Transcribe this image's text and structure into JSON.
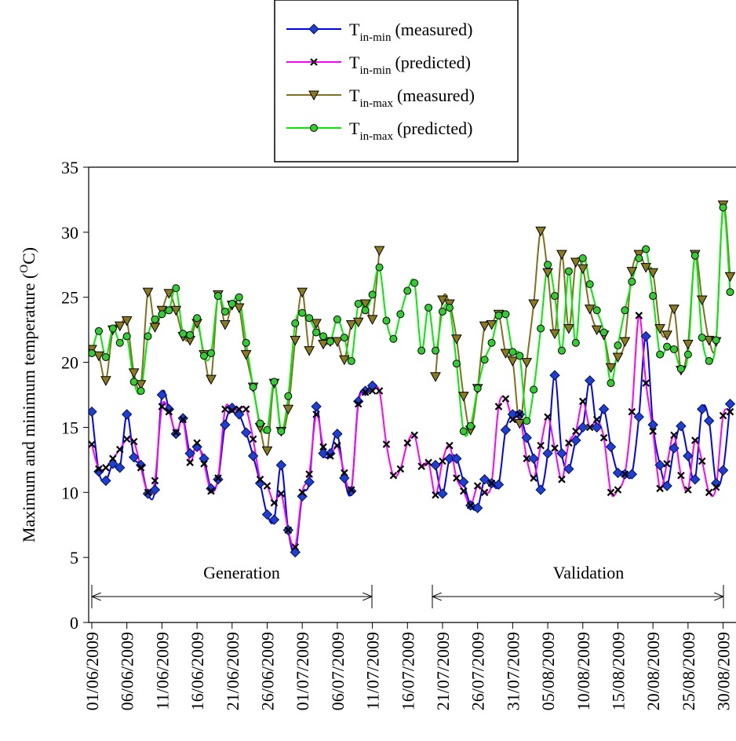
{
  "chart_data": {
    "type": "line",
    "ylabel": {
      "text": "Maximum and minimum temperature (",
      "sup": "O",
      "end": "C)"
    },
    "x": [
      "01/06/2009",
      "02/06/2009",
      "03/06/2009",
      "04/06/2009",
      "05/06/2009",
      "06/06/2009",
      "07/06/2009",
      "08/06/2009",
      "09/06/2009",
      "10/06/2009",
      "11/06/2009",
      "12/06/2009",
      "13/06/2009",
      "14/06/2009",
      "15/06/2009",
      "16/06/2009",
      "17/06/2009",
      "18/06/2009",
      "19/06/2009",
      "20/06/2009",
      "21/06/2009",
      "22/06/2009",
      "23/06/2009",
      "24/06/2009",
      "25/06/2009",
      "26/06/2009",
      "27/06/2009",
      "28/06/2009",
      "29/06/2009",
      "30/06/2009",
      "01/07/2009",
      "02/07/2009",
      "03/07/2009",
      "04/07/2009",
      "05/07/2009",
      "06/07/2009",
      "07/07/2009",
      "08/07/2009",
      "09/07/2009",
      "10/07/2009",
      "11/07/2009",
      "12/07/2009",
      "13/07/2009",
      "14/07/2009",
      "15/07/2009",
      "16/07/2009",
      "17/07/2009",
      "18/07/2009",
      "19/07/2009",
      "20/07/2009",
      "21/07/2009",
      "22/07/2009",
      "23/07/2009",
      "24/07/2009",
      "25/07/2009",
      "26/07/2009",
      "27/07/2009",
      "28/07/2009",
      "29/07/2009",
      "30/07/2009",
      "31/07/2009",
      "01/08/2009",
      "02/08/2009",
      "03/08/2009",
      "04/08/2009",
      "05/08/2009",
      "06/08/2009",
      "07/08/2009",
      "08/08/2009",
      "09/08/2009",
      "10/08/2009",
      "11/08/2009",
      "12/08/2009",
      "13/08/2009",
      "14/08/2009",
      "15/08/2009",
      "16/08/2009",
      "17/08/2009",
      "18/08/2009",
      "19/08/2009",
      "20/08/2009",
      "21/08/2009",
      "22/08/2009",
      "23/08/2009",
      "24/08/2009",
      "25/08/2009",
      "26/08/2009",
      "27/08/2009",
      "28/08/2009",
      "29/08/2009",
      "30/08/2009",
      "31/08/2009"
    ],
    "xlim": [
      "01/06/2009",
      "31/08/2009"
    ],
    "xticks": [
      "01/06/2009",
      "06/06/2009",
      "11/06/2009",
      "16/06/2009",
      "21/06/2009",
      "26/06/2009",
      "01/07/2009",
      "06/07/2009",
      "11/07/2009",
      "16/07/2009",
      "21/07/2009",
      "26/07/2009",
      "31/07/2009",
      "05/08/2009",
      "10/08/2009",
      "15/08/2009",
      "20/08/2009",
      "25/08/2009",
      "30/08/2009"
    ],
    "ylim": [
      0,
      35
    ],
    "yticks": [
      0,
      5,
      10,
      15,
      20,
      25,
      30,
      35
    ],
    "annotations": [
      "Generation",
      "Validation"
    ],
    "series": [
      {
        "name": {
          "base": "T",
          "sub": "in-min",
          "rest": "(measured)"
        },
        "color": "#0000ff",
        "marker": "diamond",
        "marker_color": "#1f3fd0",
        "values": [
          16.2,
          11.6,
          10.9,
          12.2,
          11.9,
          16.0,
          12.7,
          12.1,
          9.9,
          10.2,
          17.5,
          16.4,
          14.5,
          15.7,
          13.0,
          13.5,
          12.6,
          10.3,
          11.0,
          15.2,
          16.5,
          16.0,
          14.6,
          12.8,
          10.7,
          8.3,
          7.9,
          12.1,
          7.1,
          5.4,
          9.7,
          10.8,
          16.6,
          13.0,
          13.0,
          14.5,
          11.1,
          10.1,
          17.0,
          17.8,
          18.2,
          null,
          null,
          null,
          null,
          null,
          null,
          null,
          null,
          12.1,
          9.9,
          12.6,
          12.6,
          10.8,
          9.0,
          8.8,
          11.0,
          10.7,
          10.6,
          14.8,
          16.0,
          16.0,
          14.2,
          12.6,
          10.2,
          13.0,
          19.0,
          13.0,
          11.8,
          14.0,
          15.0,
          18.6,
          15.0,
          16.4,
          13.5,
          11.5,
          11.4,
          11.4,
          15.8,
          22.0,
          15.2,
          12.1,
          10.5,
          13.4,
          15.1,
          12.8,
          11.0,
          16.4,
          15.5,
          10.7,
          11.7,
          16.8
        ]
      },
      {
        "name": {
          "base": "T",
          "sub": "in-min",
          "rest": "(predicted)"
        },
        "color": "#ff00ff",
        "marker": "x",
        "marker_color": "#000000",
        "values": [
          13.7,
          11.8,
          11.9,
          12.6,
          13.3,
          14.1,
          13.9,
          11.9,
          10.0,
          10.9,
          16.6,
          16.2,
          14.6,
          15.6,
          12.3,
          13.8,
          12.2,
          10.1,
          11.1,
          16.4,
          16.3,
          16.4,
          16.4,
          14.1,
          11.0,
          10.5,
          9.2,
          9.9,
          7.1,
          5.8,
          10.0,
          11.4,
          16.0,
          13.5,
          12.8,
          13.6,
          11.5,
          10.2,
          16.8,
          17.7,
          17.8,
          17.8,
          13.7,
          11.3,
          11.8,
          13.8,
          14.4,
          12.0,
          12.3,
          9.8,
          12.4,
          13.6,
          11.1,
          10.1,
          9.0,
          10.5,
          10.0,
          10.7,
          16.6,
          17.2,
          15.6,
          16.0,
          12.6,
          11.1,
          13.6,
          15.8,
          13.4,
          11.0,
          13.8,
          14.7,
          17.0,
          15.0,
          15.6,
          14.2,
          10.0,
          10.2,
          11.4,
          16.2,
          23.6,
          18.4,
          14.7,
          10.3,
          12.2,
          14.4,
          11.3,
          10.2,
          14.0,
          12.4,
          10.0,
          10.4,
          15.9,
          16.2
        ]
      },
      {
        "name": {
          "base": "T",
          "sub": "in-max",
          "rest": "(measured)"
        },
        "color": "#807020",
        "marker": "triangle-down",
        "marker_color": "#8a7a20",
        "values": [
          21.0,
          20.5,
          18.6,
          22.5,
          22.8,
          23.2,
          19.2,
          18.3,
          25.4,
          22.7,
          24.0,
          25.3,
          24.0,
          22.0,
          21.7,
          23.0,
          20.6,
          18.7,
          25.2,
          22.9,
          24.4,
          24.2,
          20.6,
          18.1,
          15.0,
          13.2,
          18.4,
          14.7,
          16.4,
          21.7,
          25.4,
          20.9,
          23.0,
          21.4,
          21.6,
          21.6,
          20.2,
          22.9,
          23.1,
          24.5,
          23.3,
          28.6,
          null,
          null,
          null,
          null,
          null,
          null,
          null,
          18.9,
          24.8,
          24.5,
          21.8,
          17.4,
          14.8,
          18.0,
          22.8,
          22.9,
          23.7,
          20.7,
          20.1,
          15.3,
          20.0,
          24.5,
          30.1,
          26.9,
          22.2,
          28.3,
          22.6,
          27.7,
          27.2,
          24.1,
          22.5,
          22.1,
          19.6,
          20.4,
          21.6,
          27.0,
          28.3,
          27.3,
          26.9,
          22.6,
          22.1,
          24.1,
          19.4,
          21.4,
          28.3,
          24.8,
          21.7,
          21.6,
          32.1,
          26.6
        ]
      },
      {
        "name": {
          "base": "T",
          "sub": "in-max",
          "rest": "(predicted)"
        },
        "color": "#00ee00",
        "marker": "circle",
        "marker_color": "#33cc33",
        "values": [
          20.7,
          22.4,
          20.4,
          22.6,
          21.5,
          22.0,
          18.5,
          17.8,
          22.0,
          23.3,
          23.7,
          24.0,
          25.7,
          22.2,
          22.1,
          23.4,
          20.5,
          20.7,
          25.1,
          23.9,
          24.5,
          25.0,
          21.5,
          18.1,
          15.3,
          14.8,
          18.5,
          14.7,
          17.4,
          23.0,
          23.8,
          23.4,
          22.3,
          22.0,
          21.6,
          23.3,
          21.9,
          20.1,
          24.5,
          24.0,
          25.2,
          27.3,
          23.2,
          21.8,
          23.7,
          25.5,
          26.1,
          20.9,
          24.2,
          20.9,
          23.9,
          24.2,
          19.9,
          14.7,
          15.1,
          18.0,
          20.2,
          21.5,
          23.6,
          23.7,
          20.8,
          20.5,
          15.5,
          17.9,
          22.6,
          27.5,
          25.1,
          20.9,
          27.0,
          21.5,
          28.0,
          26.0,
          24.0,
          22.3,
          18.4,
          21.3,
          24.0,
          26.2,
          28.0,
          28.7,
          25.1,
          20.6,
          21.2,
          21.0,
          19.5,
          20.6,
          28.2,
          21.9,
          20.1,
          21.7,
          31.9,
          25.4
        ]
      }
    ]
  }
}
